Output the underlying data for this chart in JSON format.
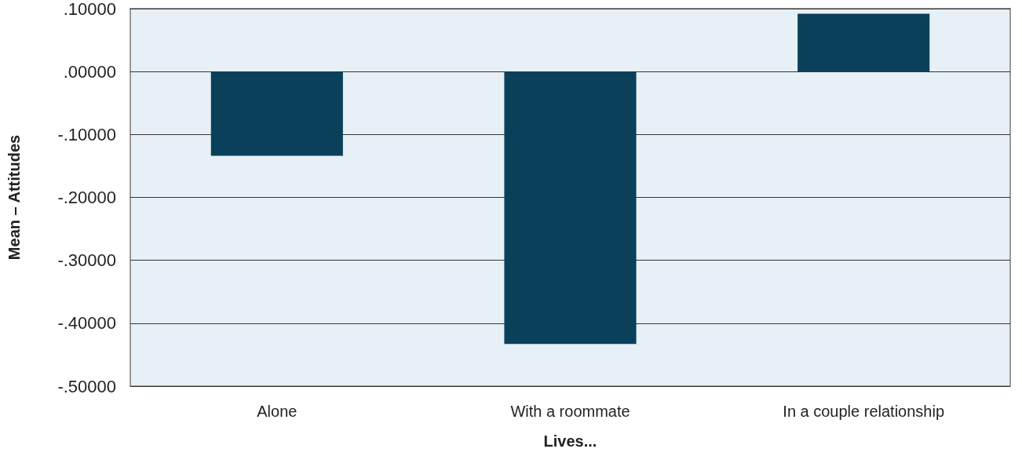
{
  "chart_data": {
    "type": "bar",
    "xlabel": "Lives...",
    "ylabel": "Mean – Attitudes",
    "categories": [
      "Alone",
      "With a roommate",
      "In a couple relationship"
    ],
    "values": [
      -0.134,
      -0.433,
      0.092
    ],
    "color": "#0a4059",
    "ylim": [
      -0.5,
      0.1
    ],
    "yticks": [
      {
        "value": -0.5,
        "label": "-.50000"
      },
      {
        "value": -0.4,
        "label": "-.40000"
      },
      {
        "value": -0.3,
        "label": "-.30000"
      },
      {
        "value": -0.2,
        "label": "-.20000"
      },
      {
        "value": -0.1,
        "label": "-.10000"
      },
      {
        "value": 0,
        "label": ".00000"
      },
      {
        "value": 0.1,
        "label": ".10000"
      }
    ],
    "grid": "y"
  }
}
